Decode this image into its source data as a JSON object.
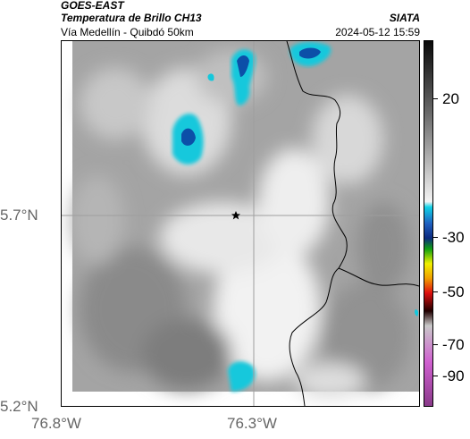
{
  "header": {
    "agency": "GOES-EAST",
    "product": "Temperatura de Brillo CH13",
    "region": "Vía Medellín - Quibdó 50km",
    "source": "SIATA",
    "datetime": "2024-05-12 15:59"
  },
  "axes": {
    "lat_labels": [
      "5.7°N",
      "5.2°N"
    ],
    "lon_labels": [
      "76.8°W",
      "76.3°W"
    ]
  },
  "colorbar": {
    "labels": [
      "20",
      "-30",
      "-50",
      "-70",
      "-90"
    ]
  },
  "colors": {
    "cloud_cold": "#0c4fa8",
    "cloud_edge": "#14c8dc",
    "background_gray": "#9a9a9a",
    "border_line": "#000000",
    "grid_line": "#9e9e9e"
  },
  "map": {
    "marker": "star-marker",
    "features": [
      "cloud-top-cold",
      "border-line",
      "grid-line"
    ]
  }
}
